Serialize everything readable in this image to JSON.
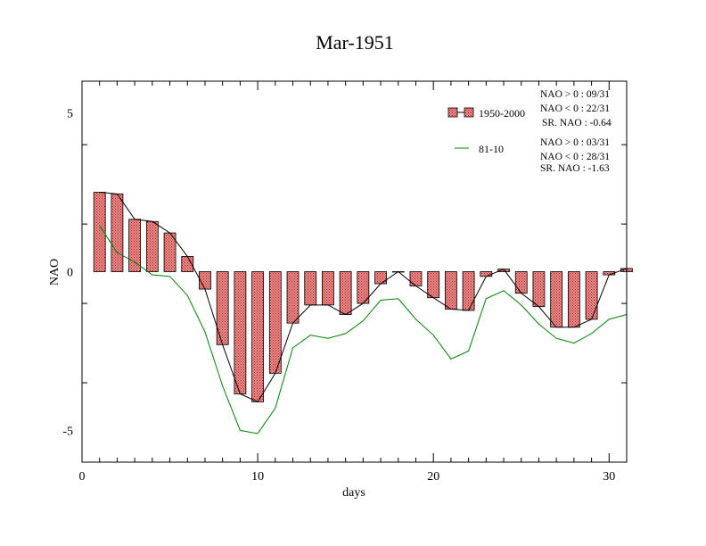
{
  "chart_data": {
    "type": "bar",
    "title": "Mar-1951",
    "xlabel": "days",
    "ylabel": "NAO",
    "xlim": [
      0,
      31
    ],
    "ylim": [
      -6,
      6
    ],
    "x_ticks": [
      0,
      10,
      20,
      30
    ],
    "y_ticks": [
      -5,
      0,
      5
    ],
    "x": [
      1,
      2,
      3,
      4,
      5,
      6,
      7,
      8,
      9,
      10,
      11,
      12,
      13,
      14,
      15,
      16,
      17,
      18,
      19,
      20,
      21,
      22,
      23,
      24,
      25,
      26,
      27,
      28,
      29,
      30,
      31
    ],
    "series": [
      {
        "name": "1950-2000",
        "kind": "bar+line",
        "color": "#f08080",
        "values": [
          2.5,
          2.45,
          1.65,
          1.58,
          1.22,
          0.48,
          -0.55,
          -2.3,
          -3.85,
          -4.1,
          -3.2,
          -1.62,
          -1.05,
          -1.05,
          -1.35,
          -1.0,
          -0.38,
          0.0,
          -0.45,
          -0.82,
          -1.18,
          -1.22,
          -0.15,
          0.08,
          -0.68,
          -1.1,
          -1.75,
          -1.75,
          -1.5,
          -0.1,
          0.1
        ]
      },
      {
        "name": "81-10",
        "kind": "line",
        "color": "#008000",
        "values": [
          1.45,
          0.6,
          0.3,
          -0.1,
          -0.15,
          -0.75,
          -1.9,
          -3.6,
          -5.0,
          -5.1,
          -4.3,
          -2.4,
          -2.0,
          -2.1,
          -1.95,
          -1.55,
          -0.9,
          -0.85,
          -1.5,
          -2.0,
          -2.75,
          -2.5,
          -0.85,
          -0.6,
          -1.05,
          -1.65,
          -2.1,
          -2.25,
          -1.95,
          -1.5,
          -1.35
        ]
      }
    ],
    "legend": {
      "placement": "top-right",
      "entries": [
        {
          "label": "1950-2000",
          "stats": [
            "NAO > 0 : 09/31",
            "NAO < 0 : 22/31",
            "SR. NAO : -0.64"
          ]
        },
        {
          "label": "81-10",
          "stats": [
            "NAO > 0 : 03/31",
            "NAO < 0 : 28/31",
            "SR. NAO : -1.63"
          ]
        }
      ]
    }
  }
}
